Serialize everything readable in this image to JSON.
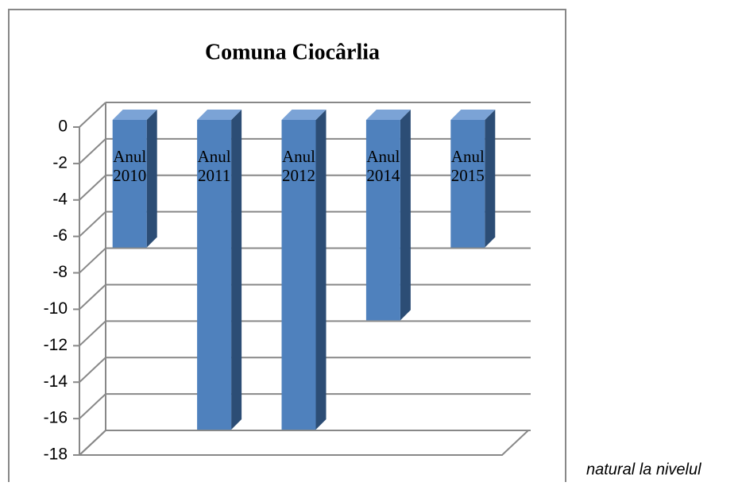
{
  "chart_data": {
    "type": "bar3d",
    "title": "Comuna Ciocârlia",
    "categories": [
      "Anul 2010",
      "Anul 2011",
      "Anul 2012",
      "Anul 2014",
      "Anul 2015"
    ],
    "values": [
      -7,
      -17,
      -17,
      -11,
      -7
    ],
    "color": "#4f81bd",
    "side_color": "#2c4d75",
    "top_color": "#7ba3d6",
    "ylim": [
      -18,
      0
    ],
    "yticks": [
      0,
      -2,
      -4,
      -6,
      -8,
      -10,
      -12,
      -14,
      -16,
      -18
    ],
    "grid": true
  },
  "caption": "natural la nivelul"
}
